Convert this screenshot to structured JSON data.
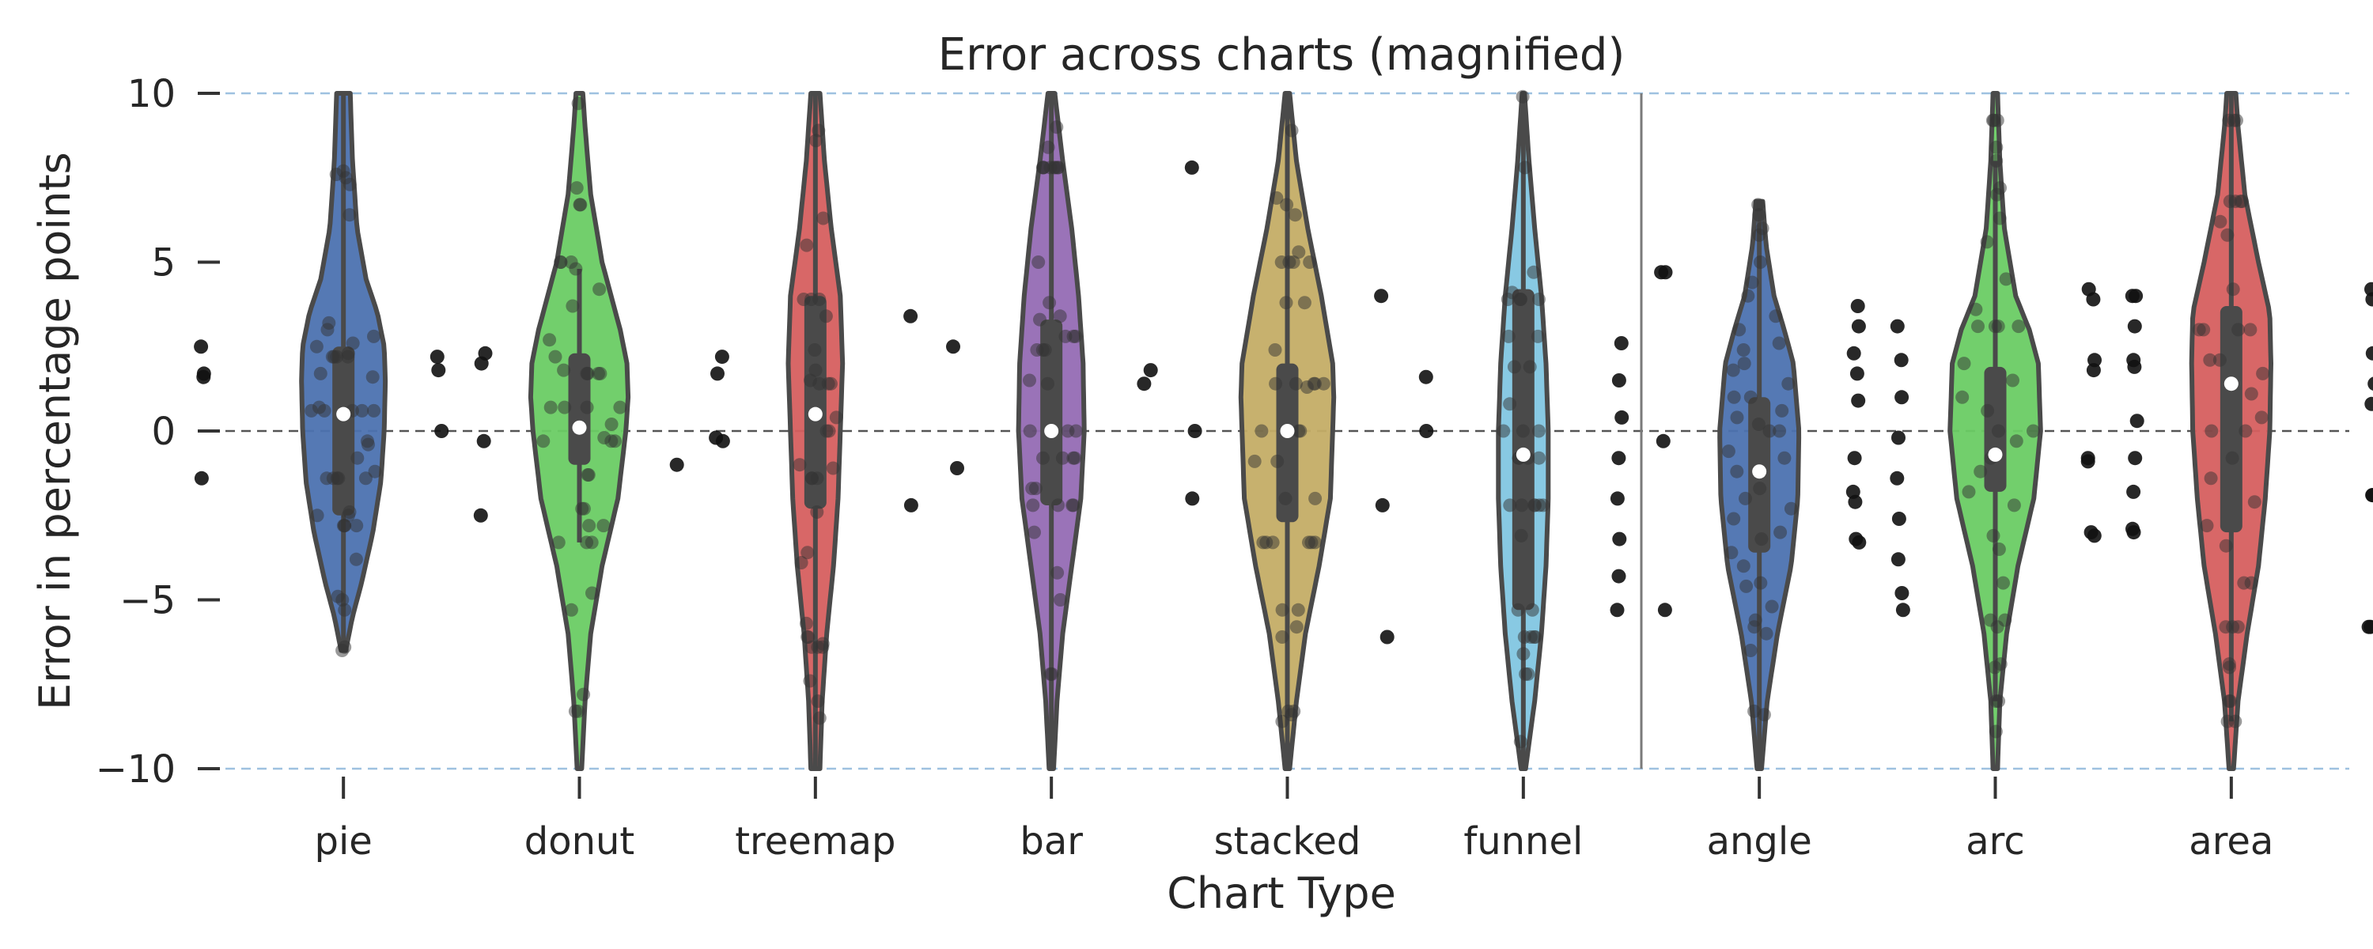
{
  "chart_data": {
    "type": "violin",
    "title": "Error across charts (magnified)",
    "xlabel": "Chart Type",
    "ylabel": "Error in percentage points",
    "ylim": [
      -10,
      10
    ],
    "yticks": [
      -10,
      -5,
      0,
      5,
      10
    ],
    "ytick_labels": [
      "−10",
      "−5",
      "0",
      "5",
      "10"
    ],
    "categories": [
      "pie",
      "donut",
      "treemap",
      "bar",
      "stacked",
      "funnel",
      "angle",
      "arc",
      "area"
    ],
    "group_separator_after": "funnel",
    "reference_lines": [
      {
        "y": 0,
        "style": "dashed",
        "color": "#555555"
      },
      {
        "y": 10,
        "style": "dashed",
        "color": "#9ec1e0"
      },
      {
        "y": -10,
        "style": "dashed",
        "color": "#9ec1e0"
      }
    ],
    "series": [
      {
        "category": "pie",
        "color": "#4c72b0",
        "median": 0.5,
        "q1": -2.5,
        "q3": 2.5,
        "whisker_low": -6.5,
        "whisker_high": 10,
        "density": [
          [
            -6.5,
            0.02
          ],
          [
            -5.5,
            0.08
          ],
          [
            -4.5,
            0.16
          ],
          [
            -3.0,
            0.26
          ],
          [
            -1.5,
            0.33
          ],
          [
            0,
            0.36
          ],
          [
            1.5,
            0.37
          ],
          [
            2.5,
            0.36
          ],
          [
            3.5,
            0.3
          ],
          [
            4.5,
            0.2
          ],
          [
            6,
            0.12
          ],
          [
            8,
            0.08
          ],
          [
            10,
            0.06
          ]
        ],
        "points": [
          -6.5,
          -6.4,
          -5.3,
          -5.0,
          -4.9,
          -3.8,
          -2.8,
          -2.8,
          -2.8,
          -2.8,
          -2.5,
          -2.5,
          -2.4,
          -1.4,
          -1.4,
          -1.4,
          -1.4,
          -1.4,
          -1.2,
          -0.8,
          -0.4,
          -0.3,
          0.6,
          0.6,
          0.6,
          0.6,
          0.6,
          0.7,
          1.6,
          1.7,
          2.2,
          2.2,
          2.2,
          2.2,
          2.3,
          2.5,
          2.6,
          2.8,
          3.0,
          3.2,
          6.4,
          7.3,
          7.5,
          7.6,
          7.7
        ],
        "outliers": [
          -2.5,
          -1.4,
          -0.3,
          1.7,
          2.0,
          2.5,
          2.3,
          1.6
        ]
      },
      {
        "category": "donut",
        "color": "#6acc64",
        "median": 0.1,
        "q1": -1.0,
        "q3": 2.3,
        "whisker_low": -3.3,
        "whisker_high": 4.8,
        "density": [
          [
            -10,
            0.02
          ],
          [
            -8,
            0.05
          ],
          [
            -6,
            0.1
          ],
          [
            -4,
            0.2
          ],
          [
            -2,
            0.34
          ],
          [
            0,
            0.41
          ],
          [
            1,
            0.43
          ],
          [
            2,
            0.42
          ],
          [
            3,
            0.36
          ],
          [
            5,
            0.2
          ],
          [
            7,
            0.1
          ],
          [
            9,
            0.05
          ],
          [
            10,
            0.03
          ]
        ],
        "points": [
          -8.3,
          -8.3,
          -7.8,
          -5.3,
          -4.8,
          -3.3,
          -3.3,
          -3.3,
          -2.8,
          -2.8,
          -2.3,
          -2.3,
          -1.3,
          -1.3,
          -0.3,
          -0.3,
          -0.3,
          -0.2,
          0.2,
          0.7,
          0.7,
          0.7,
          0.7,
          1.7,
          1.7,
          1.7,
          1.7,
          1.8,
          2.2,
          2.7,
          3.7,
          4.2,
          4.8,
          5.0,
          5.0,
          5.0,
          6.7,
          6.7,
          7.2,
          9.7
        ],
        "outliers": [
          -0.3,
          0.0,
          1.7,
          2.2,
          2.2,
          1.8,
          -0.2
        ]
      },
      {
        "category": "treemap",
        "color": "#d65f5f",
        "median": 0.5,
        "q1": -2.3,
        "q3": 4.0,
        "whisker_low": -10,
        "whisker_high": 10,
        "density": [
          [
            -10,
            0.04
          ],
          [
            -8,
            0.06
          ],
          [
            -6,
            0.1
          ],
          [
            -4,
            0.16
          ],
          [
            -2,
            0.2
          ],
          [
            0,
            0.22
          ],
          [
            2,
            0.24
          ],
          [
            4,
            0.22
          ],
          [
            6,
            0.14
          ],
          [
            8,
            0.08
          ],
          [
            10,
            0.04
          ]
        ],
        "points": [
          -8.5,
          -8.0,
          -7.4,
          -6.4,
          -6.4,
          -6.4,
          -6.3,
          -6.1,
          -6.1,
          -5.7,
          -3.9,
          -3.6,
          -2.4,
          -1.4,
          -1.4,
          -1.4,
          -1.1,
          -1.0,
          0.0,
          0.0,
          0.4,
          1.4,
          1.4,
          1.4,
          1.5,
          1.8,
          2.4,
          3.4,
          3.9,
          3.9,
          3.9,
          5.5,
          6.3,
          8.6,
          8.9
        ],
        "outliers": [
          -1.1,
          -1.0,
          2.5
        ]
      },
      {
        "category": "bar",
        "color": "#956cb4",
        "median": 0.0,
        "q1": -2.2,
        "q3": 3.3,
        "whisker_low": -10,
        "whisker_high": 10,
        "density": [
          [
            -10,
            0.02
          ],
          [
            -8,
            0.05
          ],
          [
            -6,
            0.1
          ],
          [
            -4,
            0.18
          ],
          [
            -2,
            0.26
          ],
          [
            0,
            0.29
          ],
          [
            2,
            0.28
          ],
          [
            4,
            0.24
          ],
          [
            6,
            0.18
          ],
          [
            8,
            0.1
          ],
          [
            10,
            0.03
          ]
        ],
        "points": [
          -7.2,
          -7.2,
          -5.0,
          -4.2,
          -3.0,
          -2.2,
          -2.2,
          -2.2,
          -2.2,
          -1.7,
          -1.7,
          -0.8,
          -0.8,
          -0.8,
          -0.8,
          0.0,
          0.0,
          0.0,
          0.0,
          1.4,
          1.5,
          2.4,
          2.4,
          2.4,
          2.8,
          2.8,
          2.8,
          3.3,
          3.4,
          3.8,
          5.0,
          7.8,
          7.8,
          7.8,
          7.8,
          7.8,
          7.8,
          7.8,
          7.8,
          8.4,
          9.0
        ],
        "outliers": [
          7.8,
          -2.2,
          -2.0,
          3.4,
          0.0
        ]
      },
      {
        "category": "stacked",
        "color": "#c4ad66",
        "median": 0.0,
        "q1": -2.7,
        "q3": 2.0,
        "whisker_low": -10,
        "whisker_high": 10,
        "density": [
          [
            -10,
            0.02
          ],
          [
            -8,
            0.08
          ],
          [
            -6,
            0.16
          ],
          [
            -4,
            0.28
          ],
          [
            -2,
            0.38
          ],
          [
            0,
            0.4
          ],
          [
            1,
            0.41
          ],
          [
            2,
            0.4
          ],
          [
            4,
            0.3
          ],
          [
            6,
            0.18
          ],
          [
            8,
            0.08
          ],
          [
            10,
            0.02
          ]
        ],
        "points": [
          -8.6,
          -8.4,
          -8.3,
          -8.3,
          -6.1,
          -5.8,
          -5.3,
          -5.3,
          -3.3,
          -3.3,
          -3.3,
          -3.3,
          -3.3,
          -3.3,
          -2.0,
          -2.0,
          -0.9,
          -0.9,
          0.0,
          0.0,
          0.0,
          1.3,
          1.4,
          1.4,
          1.4,
          1.4,
          1.4,
          2.4,
          3.8,
          3.8,
          5.0,
          5.0,
          5.0,
          5.0,
          5.3,
          6.4,
          6.7,
          6.9,
          8.9
        ],
        "outliers": [
          1.6,
          1.8,
          0.0,
          1.4
        ]
      },
      {
        "category": "funnel",
        "color": "#82c6e2",
        "median": -0.7,
        "q1": -5.3,
        "q3": 4.2,
        "whisker_low": -10,
        "whisker_high": 10,
        "density": [
          [
            -10,
            0.02
          ],
          [
            -8,
            0.1
          ],
          [
            -6,
            0.16
          ],
          [
            -4,
            0.2
          ],
          [
            -2,
            0.22
          ],
          [
            0,
            0.22
          ],
          [
            2,
            0.2
          ],
          [
            4,
            0.16
          ],
          [
            6,
            0.1
          ],
          [
            8,
            0.05
          ],
          [
            10,
            0.01
          ]
        ],
        "points": [
          -9.2,
          -7.2,
          -7.2,
          -6.6,
          -6.1,
          -6.1,
          -6.1,
          -6.1,
          -5.3,
          -5.3,
          -3.1,
          -2.2,
          -2.2,
          -2.2,
          -2.2,
          -2.2,
          -2.2,
          -0.8,
          -0.8,
          -0.8,
          -0.8,
          0.0,
          0.0,
          0.0,
          0.8,
          1.9,
          1.9,
          2.8,
          2.8,
          3.9,
          3.9,
          3.9,
          3.9,
          4.1,
          4.7,
          7.8,
          9.9
        ],
        "outliers": [
          4.7,
          4.0,
          -0.3,
          -2.2,
          -5.3,
          -6.1,
          4.7
        ]
      },
      {
        "category": "angle",
        "color": "#4c72b0",
        "median": -1.2,
        "q1": -3.6,
        "q3": 1.0,
        "whisker_low": -10,
        "whisker_high": 6.8,
        "density": [
          [
            -10,
            0.02
          ],
          [
            -8,
            0.07
          ],
          [
            -6,
            0.16
          ],
          [
            -4,
            0.28
          ],
          [
            -2,
            0.34
          ],
          [
            0,
            0.35
          ],
          [
            2,
            0.3
          ],
          [
            3,
            0.22
          ],
          [
            4,
            0.13
          ],
          [
            5.5,
            0.06
          ],
          [
            6.8,
            0.03
          ]
        ],
        "points": [
          -8.4,
          -8.3,
          -6.5,
          -6.0,
          -5.8,
          -5.6,
          -5.2,
          -4.6,
          -4.5,
          -4.0,
          -3.6,
          -3.2,
          -3.0,
          -2.6,
          -2.3,
          -2.0,
          -1.7,
          -1.2,
          -0.8,
          -0.6,
          0.0,
          0.0,
          0.2,
          0.4,
          0.6,
          1.0,
          1.0,
          1.4,
          1.8,
          2.0,
          2.4,
          2.6,
          3.0,
          3.4,
          4.0,
          4.4,
          5.0,
          5.8,
          6.0,
          6.4,
          6.7
        ],
        "outliers": [
          -5.3,
          -5.3,
          -4.8,
          -4.3,
          -3.8,
          -3.2,
          -2.6,
          -2.0,
          -1.4,
          -0.8,
          -0.2,
          0.4,
          1.0,
          1.5,
          2.1,
          2.6,
          3.1
        ]
      },
      {
        "category": "arc",
        "color": "#6acc64",
        "median": -0.7,
        "q1": -1.8,
        "q3": 1.9,
        "whisker_low": -8,
        "whisker_high": 8,
        "density": [
          [
            -10,
            0.02
          ],
          [
            -8,
            0.04
          ],
          [
            -6,
            0.1
          ],
          [
            -4,
            0.2
          ],
          [
            -2,
            0.34
          ],
          [
            0,
            0.4
          ],
          [
            2,
            0.38
          ],
          [
            3,
            0.3
          ],
          [
            4,
            0.18
          ],
          [
            6,
            0.08
          ],
          [
            8,
            0.04
          ],
          [
            10,
            0.02
          ]
        ],
        "points": [
          -8.9,
          -8.0,
          -8.0,
          -7.0,
          -6.9,
          -5.8,
          -5.6,
          -5.6,
          -4.5,
          -3.5,
          -3.1,
          -2.2,
          -1.8,
          -1.2,
          -0.8,
          -0.3,
          0.0,
          0.0,
          0.6,
          1.0,
          1.5,
          2.0,
          3.1,
          3.1,
          3.1,
          3.1,
          3.6,
          4.5,
          5.6,
          6.3,
          7.0,
          7.2,
          8.0,
          8.4,
          9.2,
          9.2,
          9.2
        ],
        "outliers": [
          4.0,
          3.7,
          3.1,
          2.3,
          1.9,
          0.9,
          0.3,
          -0.8,
          -1.8,
          -2.1,
          -3.0,
          -3.2,
          4.0,
          3.1,
          2.1,
          1.7,
          -0.8,
          -1.8,
          -2.9,
          -3.3
        ]
      },
      {
        "category": "area",
        "color": "#d65f5f",
        "median": 1.4,
        "q1": -3.0,
        "q3": 3.7,
        "whisker_low": -8.6,
        "whisker_high": 10,
        "density": [
          [
            -10,
            0.02
          ],
          [
            -8,
            0.06
          ],
          [
            -6,
            0.14
          ],
          [
            -4,
            0.24
          ],
          [
            -2,
            0.3
          ],
          [
            0,
            0.34
          ],
          [
            2,
            0.35
          ],
          [
            3.5,
            0.34
          ],
          [
            5,
            0.24
          ],
          [
            7,
            0.12
          ],
          [
            9,
            0.06
          ],
          [
            10,
            0.04
          ]
        ],
        "points": [
          -8.6,
          -8.6,
          -8.0,
          -8.0,
          -7.0,
          -6.9,
          -5.8,
          -5.8,
          -5.8,
          -4.5,
          -4.5,
          -3.4,
          -2.8,
          -2.1,
          -1.4,
          -0.8,
          0.0,
          0.0,
          0.4,
          1.1,
          1.7,
          2.1,
          2.1,
          3.0,
          3.0,
          3.0,
          3.0,
          4.2,
          5.8,
          6.2,
          6.8,
          6.8,
          6.8,
          6.8,
          9.2,
          9.2,
          9.2
        ],
        "outliers": [
          4.2,
          3.9,
          2.3,
          1.8,
          0.8,
          -0.9,
          -1.9,
          -3.0,
          -5.8,
          4.2,
          3.9,
          2.1,
          1.4,
          -0.8,
          -1.9,
          -3.1,
          -5.8
        ]
      }
    ]
  }
}
